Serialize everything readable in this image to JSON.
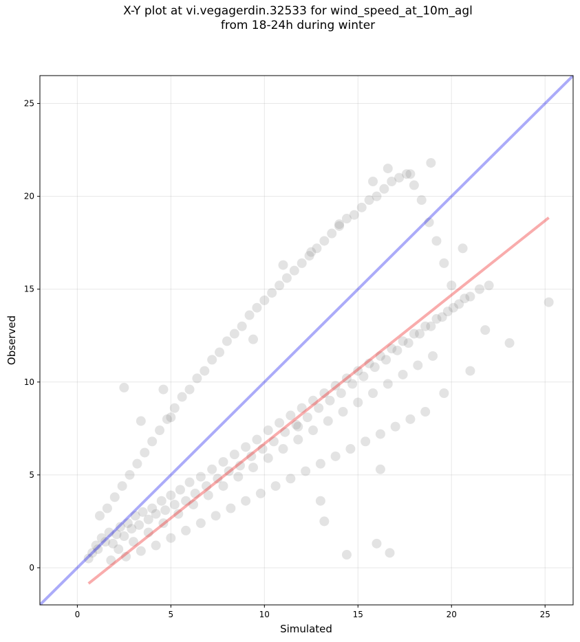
{
  "chart_data": {
    "type": "scatter",
    "title_line1": "X-Y plot at vi.vegagerdin.32533 for wind_speed_at_10m_agl",
    "title_line2": "from 18-24h during winter",
    "xlabel": "Simulated",
    "ylabel": "Observed",
    "xlim": [
      -2,
      26.5
    ],
    "ylim": [
      -2,
      26.5
    ],
    "xticks": [
      0,
      5,
      10,
      15,
      20,
      25
    ],
    "yticks": [
      0,
      5,
      10,
      15,
      20,
      25
    ],
    "grid": true,
    "colors": {
      "points": "#808080",
      "identity_line": "#0000ee",
      "fit_line": "#ee1111"
    },
    "identity_line": {
      "x": [
        -2,
        26.5
      ],
      "y": [
        -2,
        26.5
      ]
    },
    "fit_line": {
      "x": [
        0.6,
        25.2
      ],
      "y": [
        -0.85,
        18.85
      ]
    },
    "series": [
      {
        "x": [
          0.6,
          0.8,
          1.0,
          1.1,
          1.3,
          1.5,
          1.7,
          1.9,
          2.1,
          2.3,
          2.5,
          2.7,
          2.9,
          3.1,
          3.3,
          3.5,
          3.8,
          4.0,
          4.2,
          4.5,
          4.7,
          5.0,
          5.2,
          5.5,
          5.8,
          6.0,
          6.3,
          6.6,
          6.9,
          7.2,
          7.5,
          7.8,
          8.1,
          8.4,
          8.7,
          9.0,
          9.3,
          9.6,
          9.9,
          10.2,
          10.5,
          10.8,
          11.1,
          11.4,
          11.7,
          12.0,
          12.3,
          12.6,
          12.9,
          13.2,
          13.5,
          13.8,
          14.1,
          14.4,
          14.7,
          15.0,
          15.3,
          15.6,
          15.9,
          16.2,
          16.5,
          16.8,
          17.1,
          17.4,
          17.7,
          18.0,
          18.3,
          18.6,
          18.9,
          19.2,
          19.5,
          19.8,
          20.1,
          20.4,
          20.7,
          21.0,
          21.5,
          22.0,
          1.2,
          1.6,
          2.0,
          2.4,
          2.8,
          3.2,
          3.6,
          4.0,
          4.4,
          4.8,
          5.2,
          5.6,
          6.0,
          6.4,
          6.8,
          7.2,
          7.6,
          8.0,
          8.4,
          8.8,
          9.2,
          9.6,
          10.0,
          10.4,
          10.8,
          11.2,
          11.6,
          12.0,
          12.4,
          12.8,
          13.2,
          13.6,
          14.0,
          14.4,
          14.8,
          15.2,
          15.6,
          16.0,
          16.4,
          16.8,
          17.2,
          17.6,
          18.0,
          18.4,
          18.8,
          19.2,
          19.6,
          20.0,
          1.8,
          2.6,
          3.4,
          4.2,
          5.0,
          5.8,
          6.6,
          7.4,
          8.2,
          9.0,
          9.8,
          10.6,
          11.4,
          12.2,
          13.0,
          13.8,
          14.6,
          15.4,
          16.2,
          17.0,
          17.8,
          18.6,
          2.2,
          3.0,
          3.8,
          4.6,
          5.4,
          6.2,
          7.0,
          7.8,
          8.6,
          9.4,
          10.2,
          11.0,
          11.8,
          12.6,
          13.4,
          14.2,
          15.0,
          15.8,
          16.6,
          17.4,
          18.2,
          19.0,
          2.5,
          3.4,
          4.6,
          5.0,
          12.5,
          11.0,
          14.0,
          15.8,
          16.6,
          17.8,
          18.9,
          16.2,
          13.2,
          21.0,
          23.1,
          25.2,
          20.6,
          14.4,
          16.0,
          16.7,
          19.6,
          21.8,
          11.8,
          9.4,
          13.0
        ],
        "y": [
          0.5,
          0.8,
          1.2,
          1.0,
          1.6,
          1.4,
          1.9,
          1.3,
          1.8,
          2.2,
          1.7,
          2.4,
          2.1,
          2.8,
          2.3,
          3.0,
          2.6,
          3.2,
          2.9,
          3.6,
          3.1,
          3.9,
          3.4,
          4.2,
          3.6,
          4.6,
          4.0,
          4.9,
          4.4,
          5.3,
          4.8,
          5.7,
          5.2,
          6.1,
          5.5,
          6.5,
          6.0,
          6.9,
          6.4,
          7.4,
          6.8,
          7.8,
          7.3,
          8.2,
          7.7,
          8.6,
          8.1,
          9.0,
          8.6,
          9.4,
          9.0,
          9.8,
          9.4,
          10.2,
          9.9,
          10.6,
          10.3,
          11.0,
          10.8,
          11.4,
          11.2,
          11.8,
          11.7,
          12.2,
          12.1,
          12.6,
          12.6,
          13.0,
          13.0,
          13.4,
          13.5,
          13.8,
          14.0,
          14.2,
          14.5,
          14.6,
          15.0,
          15.2,
          2.8,
          3.2,
          3.8,
          4.4,
          5.0,
          5.6,
          6.2,
          6.8,
          7.4,
          8.0,
          8.6,
          9.2,
          9.6,
          10.2,
          10.6,
          11.2,
          11.6,
          12.2,
          12.6,
          13.0,
          13.6,
          14.0,
          14.4,
          14.8,
          15.2,
          15.6,
          16.0,
          16.4,
          16.8,
          17.2,
          17.6,
          18.0,
          18.4,
          18.8,
          19.0,
          19.4,
          19.8,
          20.0,
          20.4,
          20.8,
          21.0,
          21.2,
          20.6,
          19.8,
          18.6,
          17.6,
          16.4,
          15.2,
          0.4,
          0.6,
          0.9,
          1.2,
          1.6,
          2.0,
          2.4,
          2.8,
          3.2,
          3.6,
          4.0,
          4.4,
          4.8,
          5.2,
          5.6,
          6.0,
          6.4,
          6.8,
          7.2,
          7.6,
          8.0,
          8.4,
          1.0,
          1.4,
          1.9,
          2.4,
          2.9,
          3.4,
          3.9,
          4.4,
          4.9,
          5.4,
          5.9,
          6.4,
          6.9,
          7.4,
          7.9,
          8.4,
          8.9,
          9.4,
          9.9,
          10.4,
          10.9,
          11.4,
          9.7,
          7.9,
          9.6,
          8.1,
          17.0,
          16.3,
          18.5,
          20.8,
          21.5,
          21.2,
          21.8,
          5.3,
          2.5,
          10.6,
          12.1,
          14.3,
          17.2,
          0.7,
          1.3,
          0.8,
          9.4,
          12.8,
          7.6,
          12.3,
          3.6
        ]
      }
    ]
  }
}
